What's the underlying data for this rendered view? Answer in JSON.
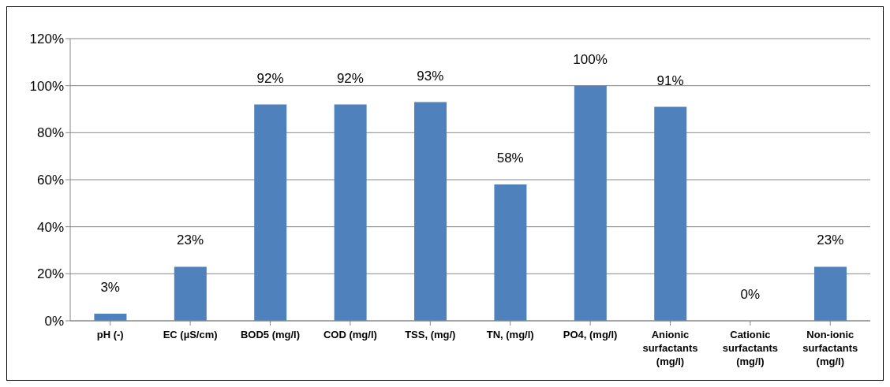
{
  "chart_data": {
    "type": "bar",
    "categories": [
      "pH (-)",
      "EC (µS/cm)",
      "BOD5 (mg/l)",
      "COD (mg/l)",
      "TSS, (mg/)",
      "TN, (mg/l)",
      "PO4, (mg/l)",
      "Anionic surfactants (mg/l)",
      "Cationic surfactants (mg/l)",
      "Non-ionic surfactants (mg/l)"
    ],
    "values": [
      3,
      23,
      92,
      92,
      93,
      58,
      100,
      91,
      0,
      23
    ],
    "value_labels": [
      "3%",
      "23%",
      "92%",
      "92%",
      "93%",
      "58%",
      "100%",
      "91%",
      "0%",
      "23%"
    ],
    "color": "#4f81bd",
    "ylim": [
      0,
      120
    ],
    "yticks": [
      {
        "value": 0,
        "label": "0%"
      },
      {
        "value": 20,
        "label": "20%"
      },
      {
        "value": 40,
        "label": "40%"
      },
      {
        "value": 60,
        "label": "60%"
      },
      {
        "value": 80,
        "label": "80%"
      },
      {
        "value": 100,
        "label": "100%"
      },
      {
        "value": 120,
        "label": "120%"
      }
    ],
    "grid": "y",
    "legend": false
  }
}
